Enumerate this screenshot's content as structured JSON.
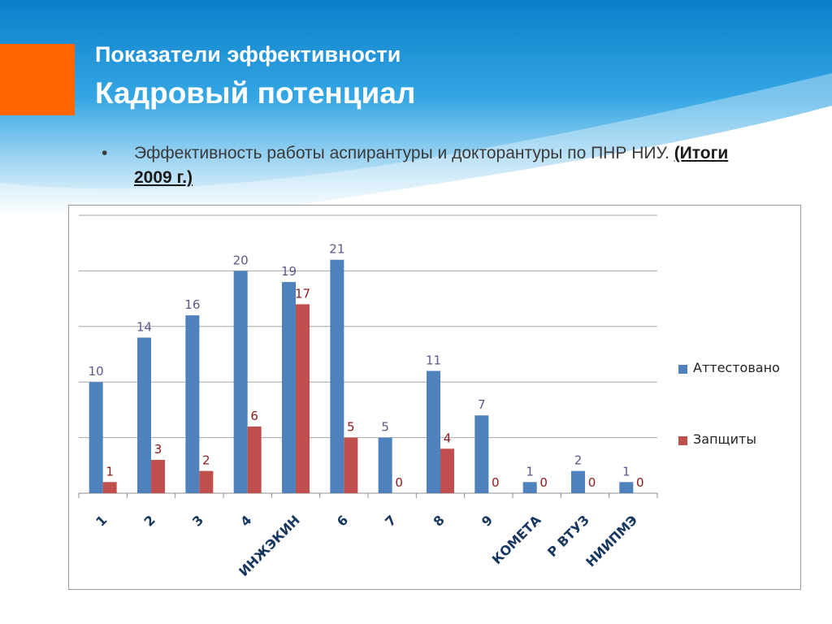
{
  "colors": {
    "accent": "#ff6600",
    "bg_top": "#0a7fc9",
    "bg_bottom": "#ffffff",
    "series1": "#4f81bd",
    "series2": "#c0504d",
    "label1": "#5a5a8a",
    "label2": "#8b1a1a"
  },
  "header": {
    "title_line1": "Показатели эффективности",
    "title_line2": "Кадровый потенциал"
  },
  "bullet": {
    "dot": "•",
    "text": "Эффективность работы аспирантуры и докторантуры по ПНР НИУ.",
    "highlight": "(Итоги 2009 г.)"
  },
  "chart_data": {
    "type": "bar",
    "categories": [
      "1",
      "2",
      "3",
      "4",
      "ИНЖЭКИН",
      "6",
      "7",
      "8",
      "9",
      "КОМЕТА",
      "Р ВТУЗ",
      "НИИПМЭ"
    ],
    "series": [
      {
        "name": "Аттестовано",
        "values": [
          10,
          14,
          16,
          20,
          19,
          21,
          5,
          11,
          7,
          1,
          2,
          1
        ]
      },
      {
        "name": "Запщиты",
        "values": [
          1,
          3,
          2,
          6,
          17,
          5,
          0,
          4,
          0,
          0,
          0,
          0
        ]
      }
    ],
    "ylim": [
      0,
      25
    ],
    "ytick_step": 5,
    "grid": true,
    "legend_position": "right",
    "data_labels": true
  }
}
